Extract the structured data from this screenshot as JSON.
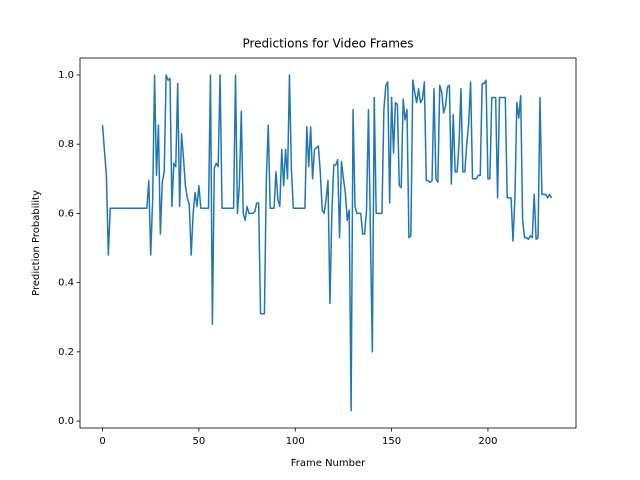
{
  "chart_data": {
    "type": "line",
    "title": "Predictions for Video Frames",
    "xlabel": "Frame Number",
    "ylabel": "Prediction Probability",
    "xlim": [
      -11.7,
      245.7
    ],
    "ylim": [
      -0.02,
      1.049
    ],
    "xticks": [
      0,
      50,
      100,
      150,
      200
    ],
    "yticks": [
      {
        "value": 0,
        "label": "0.0"
      },
      0.2,
      0.4,
      0.6,
      0.8,
      {
        "value": 1,
        "label": "1.0"
      }
    ],
    "grid": false,
    "x": [
      0,
      1,
      2,
      3,
      4,
      5,
      6,
      7,
      8,
      9,
      10,
      11,
      12,
      13,
      14,
      15,
      16,
      17,
      18,
      19,
      20,
      21,
      22,
      23,
      24,
      25,
      26,
      27,
      28,
      29,
      30,
      31,
      32,
      33,
      34,
      35,
      36,
      37,
      38,
      39,
      40,
      41,
      42,
      43,
      44,
      45,
      46,
      47,
      48,
      49,
      50,
      51,
      52,
      53,
      54,
      55,
      56,
      57,
      58,
      59,
      60,
      61,
      62,
      63,
      64,
      65,
      66,
      67,
      68,
      69,
      70,
      71,
      72,
      73,
      74,
      75,
      76,
      77,
      78,
      79,
      80,
      81,
      82,
      83,
      84,
      85,
      86,
      87,
      88,
      89,
      90,
      91,
      92,
      93,
      94,
      95,
      96,
      97,
      98,
      99,
      100,
      101,
      102,
      103,
      104,
      105,
      106,
      107,
      108,
      109,
      110,
      111,
      112,
      113,
      114,
      115,
      116,
      117,
      118,
      119,
      120,
      121,
      122,
      123,
      124,
      125,
      126,
      127,
      128,
      129,
      130,
      131,
      132,
      133,
      134,
      135,
      136,
      137,
      138,
      139,
      140,
      141,
      142,
      143,
      144,
      145,
      146,
      147,
      148,
      149,
      150,
      151,
      152,
      153,
      154,
      155,
      156,
      157,
      158,
      159,
      160,
      161,
      162,
      163,
      164,
      165,
      166,
      167,
      168,
      169,
      170,
      171,
      172,
      173,
      174,
      175,
      176,
      177,
      178,
      179,
      180,
      181,
      182,
      183,
      184,
      185,
      186,
      187,
      188,
      189,
      190,
      191,
      192,
      193,
      194,
      195,
      196,
      197,
      198,
      199,
      200,
      201,
      202,
      203,
      204,
      205,
      206,
      207,
      208,
      209,
      210,
      211,
      212,
      213,
      214,
      215,
      216,
      217,
      218,
      219,
      220,
      221,
      222,
      223,
      224,
      225,
      226,
      227,
      228,
      229,
      230,
      231,
      232,
      233
    ],
    "series": [
      {
        "color": "#1f77b4",
        "values": [
          0.855,
          0.78,
          0.71,
          0.48,
          0.615,
          0.615,
          0.615,
          0.615,
          0.615,
          0.615,
          0.615,
          0.615,
          0.615,
          0.615,
          0.615,
          0.615,
          0.615,
          0.615,
          0.615,
          0.615,
          0.615,
          0.615,
          0.615,
          0.615,
          0.695,
          0.48,
          0.64,
          1.0,
          0.71,
          0.855,
          0.54,
          0.69,
          0.72,
          1.0,
          0.985,
          0.99,
          0.62,
          0.745,
          0.735,
          0.975,
          0.62,
          0.83,
          0.76,
          0.68,
          0.645,
          0.625,
          0.48,
          0.6,
          0.66,
          0.62,
          0.68,
          0.615,
          0.615,
          0.615,
          0.615,
          0.615,
          1.0,
          0.28,
          0.73,
          0.745,
          0.735,
          1.0,
          0.615,
          0.615,
          0.615,
          0.615,
          0.615,
          0.615,
          0.615,
          1.0,
          0.6,
          0.68,
          0.895,
          0.6,
          0.58,
          0.62,
          0.6,
          0.6,
          0.6,
          0.605,
          0.63,
          0.63,
          0.31,
          0.31,
          0.31,
          0.7,
          0.855,
          0.615,
          0.615,
          0.615,
          0.72,
          0.64,
          0.62,
          0.785,
          0.68,
          0.785,
          0.7,
          1.0,
          0.73,
          0.615,
          0.615,
          0.615,
          0.615,
          0.615,
          0.615,
          0.615,
          0.85,
          0.735,
          0.85,
          0.7,
          0.785,
          0.79,
          0.795,
          0.72,
          0.61,
          0.6,
          0.64,
          0.695,
          0.34,
          0.6,
          0.74,
          0.74,
          0.755,
          0.53,
          0.75,
          0.7,
          0.66,
          0.58,
          0.61,
          0.03,
          0.9,
          0.62,
          0.6,
          0.6,
          0.6,
          0.54,
          0.54,
          0.61,
          0.9,
          0.55,
          0.2,
          0.935,
          0.6,
          0.6,
          0.6,
          0.6,
          0.9,
          0.97,
          0.98,
          0.63,
          0.935,
          0.775,
          0.92,
          0.915,
          0.68,
          0.675,
          0.93,
          0.87,
          0.9,
          0.53,
          0.535,
          0.985,
          0.95,
          0.92,
          0.96,
          0.92,
          0.93,
          0.98,
          0.695,
          0.695,
          0.69,
          0.695,
          0.96,
          0.7,
          0.69,
          0.97,
          0.95,
          0.89,
          0.91,
          0.965,
          0.97,
          0.685,
          0.885,
          0.72,
          0.72,
          0.8,
          0.96,
          0.72,
          0.72,
          0.8,
          0.86,
          0.98,
          0.7,
          0.7,
          0.7,
          0.71,
          0.71,
          0.975,
          0.975,
          0.985,
          0.7,
          0.7,
          0.935,
          0.935,
          0.935,
          0.645,
          0.935,
          0.935,
          0.935,
          0.935,
          0.645,
          0.645,
          0.645,
          0.52,
          0.645,
          0.92,
          0.875,
          0.94,
          0.58,
          0.53,
          0.53,
          0.525,
          0.535,
          0.53,
          0.655,
          0.525,
          0.53,
          0.935,
          0.655,
          0.655,
          0.655,
          0.645,
          0.655,
          0.645
        ]
      }
    ]
  }
}
